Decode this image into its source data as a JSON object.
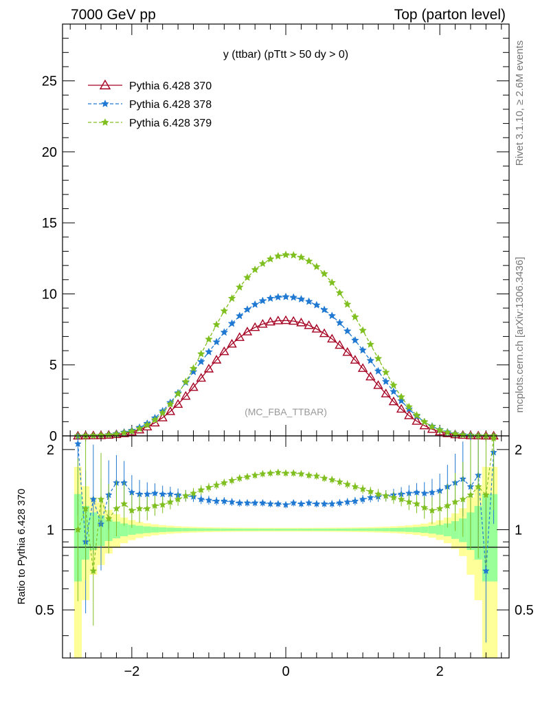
{
  "header": {
    "left": "7000 GeV pp",
    "right": "Top (parton level)"
  },
  "side_labels": {
    "rivet": "Rivet 3.1.10, ≥ 2.6M events",
    "mcplots": "mcplots.cern.ch [arXiv:1306.3436]"
  },
  "chart_data": {
    "type": "line",
    "title": "y (ttbar) (pTtt > 50 dy > 0)",
    "watermark": "(MC_FBA_TTBAR)",
    "xlim": [
      -2.9,
      2.9
    ],
    "ylim": [
      0,
      29
    ],
    "ratio_ylim": [
      0.33,
      2.25
    ],
    "ratio_ylabel": "Ratio to Pythia 6.428 370",
    "x_ticks": [
      "−2",
      "0",
      "2"
    ],
    "y_ticks": [
      "0",
      "5",
      "10",
      "15",
      "20",
      "25"
    ],
    "ratio_ticks": [
      "0.5",
      "1",
      "2"
    ],
    "legend_position": "top-left",
    "x": [
      -2.7,
      -2.6,
      -2.5,
      -2.4,
      -2.3,
      -2.2,
      -2.1,
      -2.0,
      -1.9,
      -1.8,
      -1.7,
      -1.6,
      -1.5,
      -1.4,
      -1.3,
      -1.2,
      -1.1,
      -1.0,
      -0.9,
      -0.8,
      -0.7,
      -0.6,
      -0.5,
      -0.4,
      -0.3,
      -0.2,
      -0.1,
      0.0,
      0.1,
      0.2,
      0.3,
      0.4,
      0.5,
      0.6,
      0.7,
      0.8,
      0.9,
      1.0,
      1.1,
      1.2,
      1.3,
      1.4,
      1.5,
      1.6,
      1.7,
      1.8,
      1.9,
      2.0,
      2.1,
      2.2,
      2.3,
      2.4,
      2.5,
      2.6,
      2.7
    ],
    "series": [
      {
        "name": "Pythia 6.428 370",
        "color": "#a50021",
        "style": "solid",
        "marker": "triangle",
        "values": [
          0.0,
          0.01,
          0.02,
          0.03,
          0.06,
          0.1,
          0.17,
          0.28,
          0.43,
          0.64,
          0.92,
          1.28,
          1.72,
          2.23,
          2.8,
          3.42,
          4.07,
          4.72,
          5.35,
          5.94,
          6.47,
          6.94,
          7.33,
          7.64,
          7.87,
          8.03,
          8.11,
          8.13,
          8.08,
          7.97,
          7.78,
          7.53,
          7.21,
          6.83,
          6.39,
          5.89,
          5.34,
          4.76,
          4.16,
          3.56,
          2.97,
          2.41,
          1.89,
          1.43,
          1.04,
          0.72,
          0.47,
          0.29,
          0.17,
          0.09,
          0.05,
          0.02,
          0.01,
          0.0,
          0.0
        ]
      },
      {
        "name": "Pythia 6.428 378",
        "color": "#1f78d2",
        "style": "dashed",
        "marker": "star",
        "values": [
          0.0,
          0.02,
          0.02,
          0.04,
          0.08,
          0.15,
          0.25,
          0.38,
          0.59,
          0.87,
          1.26,
          1.75,
          2.34,
          3.02,
          3.76,
          4.51,
          5.22,
          5.91,
          6.61,
          7.29,
          7.91,
          8.45,
          8.9,
          9.25,
          9.51,
          9.68,
          9.77,
          9.79,
          9.75,
          9.63,
          9.46,
          9.21,
          8.88,
          8.46,
          7.96,
          7.38,
          6.73,
          6.03,
          5.3,
          4.56,
          3.82,
          3.12,
          2.47,
          1.89,
          1.39,
          0.99,
          0.68,
          0.44,
          0.27,
          0.15,
          0.08,
          0.04,
          0.02,
          0.0,
          0.0
        ]
      },
      {
        "name": "Pythia 6.428 379",
        "color": "#7fbf1f",
        "style": "dashed",
        "marker": "star",
        "values": [
          0.0,
          0.01,
          0.02,
          0.04,
          0.07,
          0.12,
          0.21,
          0.33,
          0.51,
          0.77,
          1.13,
          1.62,
          2.23,
          2.96,
          3.81,
          4.75,
          5.77,
          6.8,
          7.83,
          8.79,
          9.68,
          10.47,
          11.15,
          11.7,
          12.13,
          12.45,
          12.66,
          12.75,
          12.72,
          12.57,
          12.3,
          11.91,
          11.41,
          10.79,
          10.07,
          9.26,
          8.37,
          7.42,
          6.44,
          5.44,
          4.47,
          3.56,
          2.74,
          2.04,
          1.45,
          0.99,
          0.65,
          0.41,
          0.24,
          0.13,
          0.07,
          0.03,
          0.01,
          0.0,
          0.0
        ]
      }
    ],
    "ratio_series": [
      {
        "name": "Pythia 6.428 378",
        "values": [
          2.1,
          0.9,
          1.3,
          1.05,
          1.35,
          1.5,
          1.5,
          1.38,
          1.36,
          1.36,
          1.37,
          1.36,
          1.36,
          1.35,
          1.34,
          1.33,
          1.3,
          1.29,
          1.28,
          1.28,
          1.27,
          1.26,
          1.26,
          1.26,
          1.26,
          1.25,
          1.25,
          1.24,
          1.26,
          1.25,
          1.26,
          1.25,
          1.25,
          1.25,
          1.26,
          1.27,
          1.28,
          1.3,
          1.32,
          1.33,
          1.34,
          1.35,
          1.36,
          1.37,
          1.38,
          1.37,
          1.38,
          1.4,
          1.45,
          1.5,
          1.55,
          1.45,
          1.6,
          0.7,
          1.95
        ]
      },
      {
        "name": "Pythia 6.428 379",
        "values": [
          1.0,
          1.2,
          0.7,
          1.3,
          1.1,
          1.2,
          1.25,
          1.18,
          1.2,
          1.2,
          1.23,
          1.24,
          1.27,
          1.3,
          1.34,
          1.37,
          1.41,
          1.44,
          1.47,
          1.5,
          1.53,
          1.56,
          1.58,
          1.6,
          1.62,
          1.63,
          1.64,
          1.63,
          1.63,
          1.62,
          1.6,
          1.59,
          1.56,
          1.54,
          1.51,
          1.48,
          1.45,
          1.42,
          1.39,
          1.36,
          1.34,
          1.32,
          1.3,
          1.27,
          1.25,
          1.21,
          1.18,
          1.2,
          1.23,
          1.27,
          1.3,
          1.35,
          1.45,
          1.35,
          2.2
        ]
      }
    ]
  }
}
